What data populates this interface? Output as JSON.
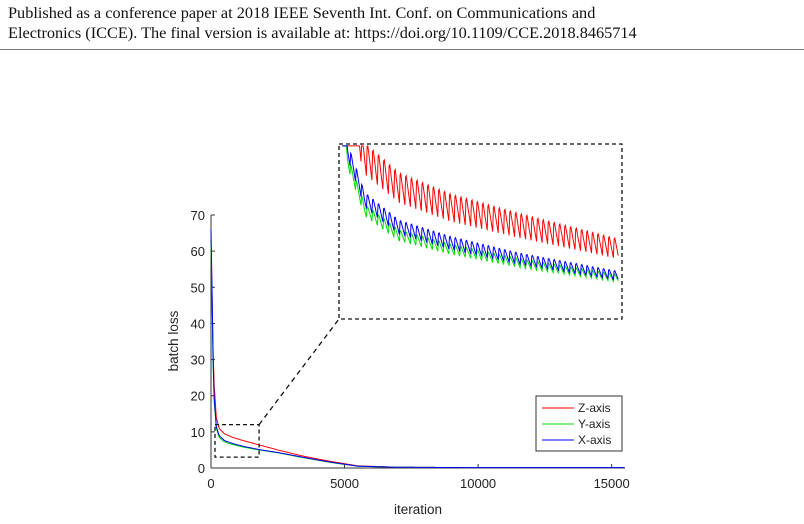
{
  "header": {
    "line1": "Published as a conference paper at 2018 IEEE Seventh Int. Conf. on Communications and",
    "line2": "Electronics (ICCE). The final version is available at: https://doi.org/10.1109/CCE.2018.8465714"
  },
  "chart_data": {
    "type": "line",
    "xlabel": "iteration",
    "ylabel": "batch loss",
    "xlim": [
      0,
      15500
    ],
    "ylim": [
      0,
      70
    ],
    "xticks": [
      "0",
      "5000",
      "10000",
      "15000"
    ],
    "yticks": [
      "0",
      "10",
      "20",
      "30",
      "40",
      "50",
      "60",
      "70"
    ],
    "legend_position": "lower-right",
    "inset": "zoomed view of iterations ~150–1800, loss ~3–13, dashed box with connector lines",
    "series": [
      {
        "name": "Z-axis",
        "color": "#ff0000",
        "x": [
          0,
          100,
          200,
          300,
          500,
          800,
          1200,
          1800,
          2500,
          3500,
          4500,
          5500,
          7000,
          10000,
          15500
        ],
        "y": [
          62,
          25,
          14,
          11,
          9.5,
          8.5,
          7.6,
          6.4,
          5.0,
          3.2,
          1.8,
          0.6,
          0.2,
          0.1,
          0.1
        ]
      },
      {
        "name": "Y-axis",
        "color": "#00dd00",
        "x": [
          0,
          100,
          200,
          300,
          500,
          800,
          1200,
          1800,
          2500,
          3500,
          4500,
          5500,
          7000,
          10000,
          15500
        ],
        "y": [
          62,
          20,
          11,
          8.5,
          7.2,
          6.5,
          5.8,
          5.0,
          4.2,
          2.8,
          1.5,
          0.5,
          0.2,
          0.1,
          0.1
        ]
      },
      {
        "name": "X-axis",
        "color": "#0000ff",
        "x": [
          0,
          100,
          200,
          300,
          500,
          800,
          1200,
          1800,
          2500,
          3500,
          4500,
          5500,
          7000,
          10000,
          15500
        ],
        "y": [
          66,
          21,
          11.5,
          9.0,
          7.6,
          6.8,
          6.0,
          5.1,
          4.3,
          2.9,
          1.6,
          0.5,
          0.2,
          0.1,
          0.1
        ]
      }
    ]
  }
}
